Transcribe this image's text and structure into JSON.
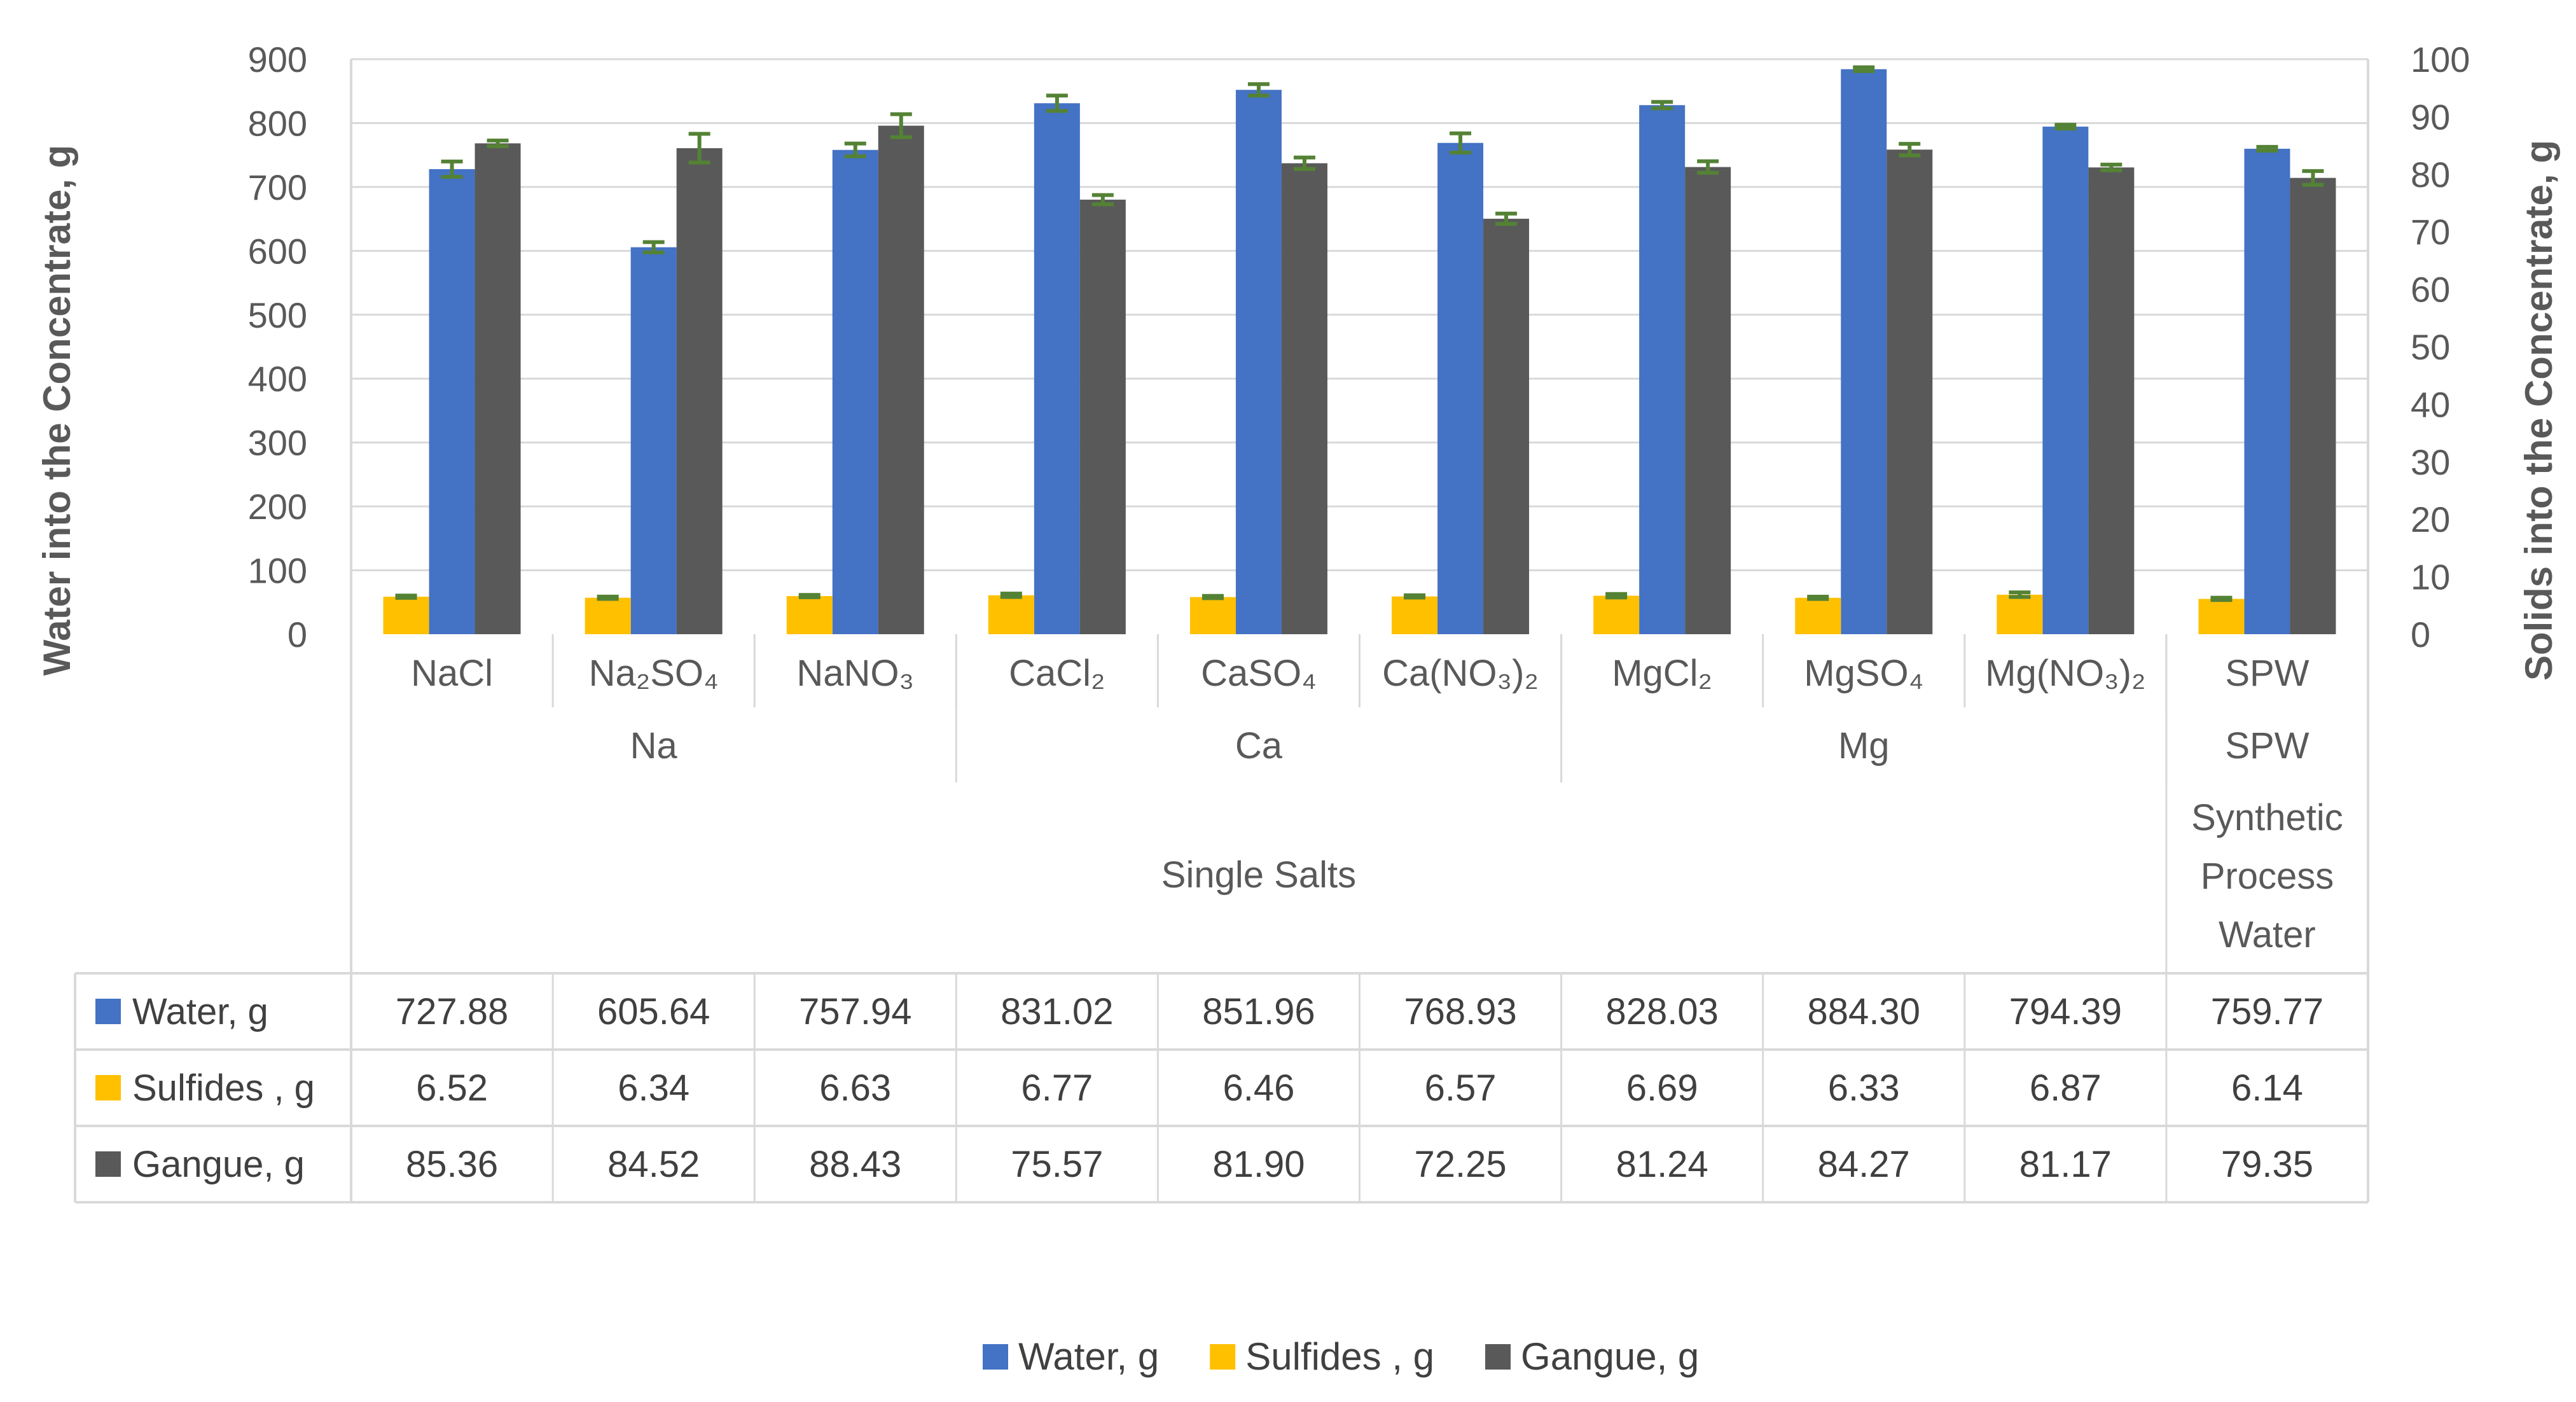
{
  "chart_data": {
    "type": "bar",
    "y_left_title": "Water into the Concentrate, g",
    "y_right_title": "Solids into the Concentrate, g",
    "y_left_ticks": [
      "0",
      "100",
      "200",
      "300",
      "400",
      "500",
      "600",
      "700",
      "800",
      "900"
    ],
    "y_right_ticks": [
      "0",
      "10",
      "20",
      "30",
      "40",
      "50",
      "60",
      "70",
      "80",
      "90",
      "100"
    ],
    "ylim_left": [
      0,
      900
    ],
    "ylim_right": [
      0,
      100
    ],
    "categories": [
      "NaCl",
      "Na₂SO₄",
      "NaNO₃",
      "CaCl₂",
      "CaSO₄",
      "Ca(NO₃)₂",
      "MgCl₂",
      "MgSO₄",
      "Mg(NO₃)₂",
      "SPW"
    ],
    "level2_groups": [
      {
        "label": "Na",
        "span": 3
      },
      {
        "label": "Ca",
        "span": 3
      },
      {
        "label": "Mg",
        "span": 3
      },
      {
        "label": "SPW",
        "span": 1
      }
    ],
    "level3_groups": [
      {
        "label": "Single Salts",
        "span": 9,
        "lines": [
          "Single Salts"
        ]
      },
      {
        "label": "Synthetic Process Water",
        "span": 1,
        "lines": [
          "Synthetic",
          "Process",
          "Water"
        ]
      }
    ],
    "series": [
      {
        "name": "Water, g",
        "axis": "left",
        "color": "#4472C4",
        "values": [
          727.88,
          605.64,
          757.94,
          831.02,
          851.96,
          768.93,
          828.03,
          884.3,
          794.39,
          759.77
        ],
        "labels": [
          "727.88",
          "605.64",
          "757.94",
          "831.02",
          "851.96",
          "768.93",
          "828.03",
          "884.30",
          "794.39",
          "759.77"
        ],
        "errors": [
          12,
          8,
          10,
          12,
          9,
          15,
          5,
          3,
          3,
          3
        ]
      },
      {
        "name": "Sulfides , g",
        "axis": "right",
        "color": "#FFC000",
        "values": [
          6.52,
          6.34,
          6.63,
          6.77,
          6.46,
          6.57,
          6.69,
          6.33,
          6.87,
          6.14
        ],
        "labels": [
          "6.52",
          "6.34",
          "6.63",
          "6.77",
          "6.46",
          "6.57",
          "6.69",
          "6.33",
          "6.87",
          "6.14"
        ],
        "errors": [
          0.2,
          0.2,
          0.2,
          0.3,
          0.2,
          0.2,
          0.3,
          0.2,
          0.4,
          0.2
        ]
      },
      {
        "name": "Gangue, g",
        "axis": "right",
        "color": "#595959",
        "values": [
          85.36,
          84.52,
          88.43,
          75.57,
          81.9,
          72.25,
          81.24,
          84.27,
          81.17,
          79.35
        ],
        "labels": [
          "85.36",
          "84.52",
          "88.43",
          "75.57",
          "81.90",
          "72.25",
          "81.24",
          "84.27",
          "81.17",
          "79.35"
        ],
        "errors": [
          0.5,
          2.5,
          2.0,
          0.8,
          1.0,
          0.9,
          1.0,
          1.0,
          0.5,
          1.2
        ]
      }
    ],
    "error_bar_color": "#548235",
    "legend_position": "bottom"
  }
}
